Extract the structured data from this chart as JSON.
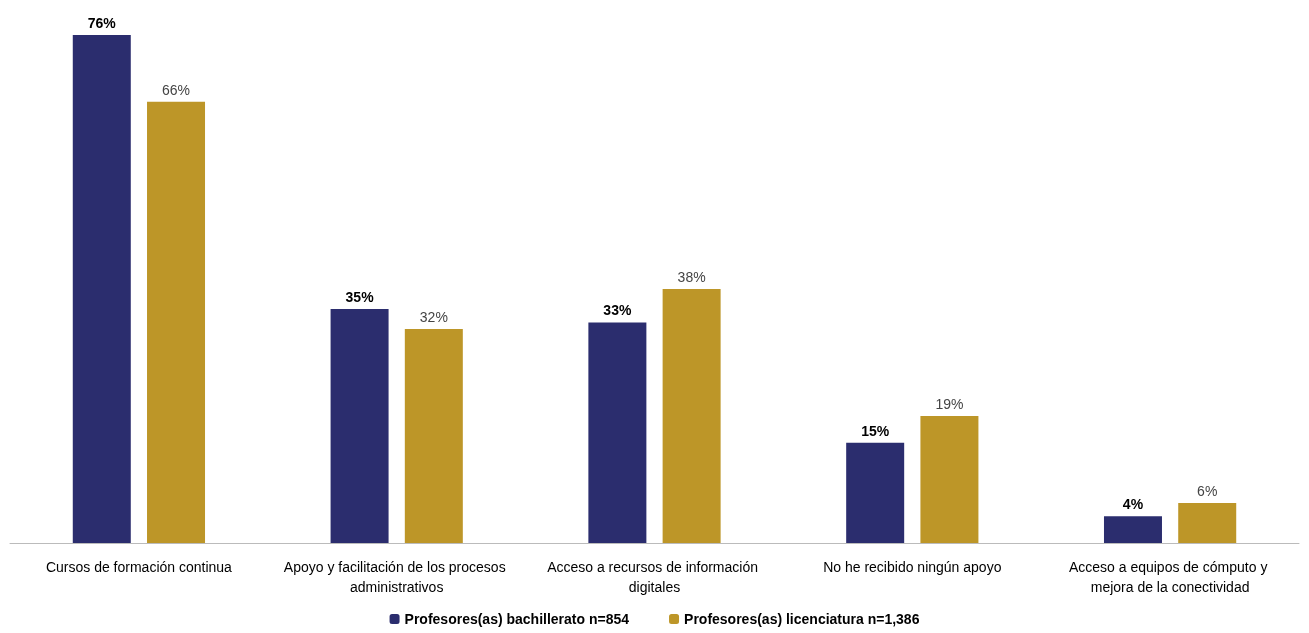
{
  "chart_data": {
    "type": "bar",
    "categories": [
      "Cursos de formación continua",
      "Apoyo y facilitación de los procesos administrativos",
      "Acceso a recursos de información digitales",
      "No he recibido ningún apoyo",
      "Acceso a equipos de cómputo y mejora de la conectividad"
    ],
    "series": [
      {
        "name": "Profesores(as) bachillerato n=854",
        "color": "#2b2d6e",
        "values": [
          76,
          35,
          33,
          15,
          4
        ],
        "value_labels": [
          "76%",
          "35%",
          "33%",
          "15%",
          "4%"
        ]
      },
      {
        "name": "Profesores(as) licenciatura n=1,386",
        "color": "#bd9628",
        "values": [
          66,
          32,
          38,
          19,
          6
        ],
        "value_labels": [
          "66%",
          "32%",
          "38%",
          "19%",
          "6%"
        ]
      }
    ],
    "legend": "bottom",
    "grid": false
  }
}
